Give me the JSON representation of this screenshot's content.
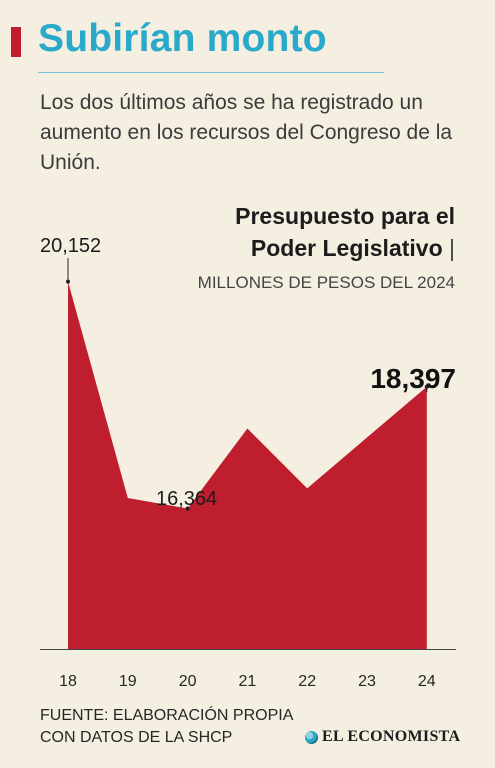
{
  "header": {
    "title": "Subirían monto",
    "subtitle": "Los dos últimos años se ha registrado un aumento en los recursos del Congreso de la Unión."
  },
  "chart_data": {
    "type": "area",
    "title_line1": "Presupuesto para el",
    "title_line2": "Poder Legislativo",
    "title_separator": "|",
    "unit_label": "MILLONES DE PESOS DEL 2024",
    "categories": [
      "18",
      "19",
      "20",
      "21",
      "22",
      "23",
      "24"
    ],
    "values": [
      20152,
      16540,
      16364,
      17700,
      16700,
      17550,
      18397
    ],
    "labels": [
      {
        "index": 0,
        "text": "20,152"
      },
      {
        "index": 2,
        "text": "16,364"
      },
      {
        "index": 6,
        "text": "18,397"
      }
    ],
    "ylim": [
      14020,
      20512
    ],
    "colors": {
      "area": "#bf1e2e",
      "axis": "#444444"
    }
  },
  "footer": {
    "source_line1": "FUENTE: ELABORACIÓN PROPIA",
    "source_line2": "CON DATOS DE LA SHCP",
    "brand": "EL ECONOMISTA"
  }
}
